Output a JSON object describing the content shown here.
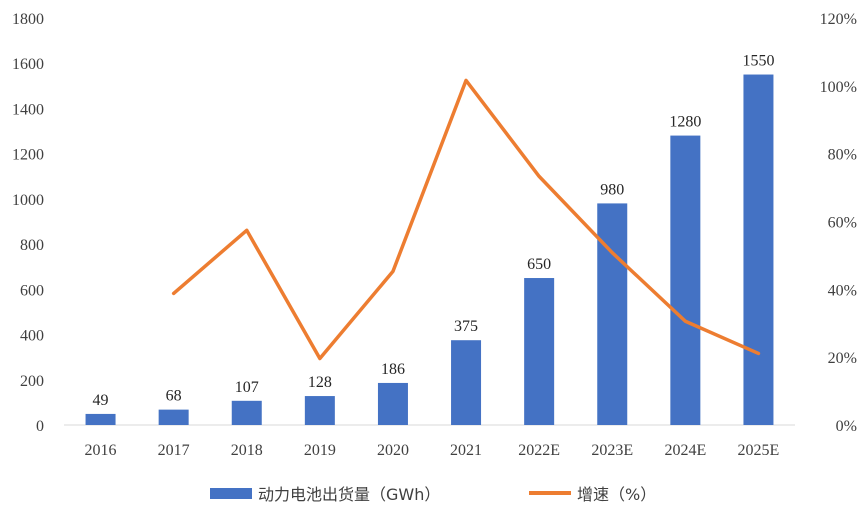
{
  "chart_data": {
    "type": "bar",
    "categories": [
      "2016",
      "2017",
      "2018",
      "2019",
      "2020",
      "2021",
      "2022E",
      "2023E",
      "2024E",
      "2025E"
    ],
    "series": [
      {
        "name": "动力电池出货量（GWh）",
        "type": "bar",
        "axis": "left",
        "color": "#4472C4",
        "values": [
          49,
          68,
          107,
          128,
          186,
          375,
          650,
          980,
          1280,
          1550
        ],
        "labels": [
          "49",
          "68",
          "107",
          "128",
          "186",
          "375",
          "650",
          "980",
          "1280",
          "1550"
        ]
      },
      {
        "name": "增速（%）",
        "type": "line",
        "axis": "right",
        "color": "#ED7D31",
        "values": [
          null,
          38.8,
          57.4,
          19.6,
          45.3,
          101.6,
          73.3,
          50.8,
          30.6,
          21.1
        ]
      }
    ],
    "y_left": {
      "ylim": [
        0,
        1800
      ],
      "ticks": [
        0,
        200,
        400,
        600,
        800,
        1000,
        1200,
        1400,
        1600,
        1800
      ],
      "tick_labels": [
        "0",
        "200",
        "400",
        "600",
        "800",
        "1000",
        "1200",
        "1400",
        "1600",
        "1800"
      ]
    },
    "y_right": {
      "ylim": [
        0,
        120
      ],
      "ticks": [
        0,
        20,
        40,
        60,
        80,
        100,
        120
      ],
      "tick_labels": [
        "0%",
        "20%",
        "40%",
        "60%",
        "80%",
        "100%",
        "120%"
      ]
    },
    "grid": false,
    "legend": "bottom"
  }
}
